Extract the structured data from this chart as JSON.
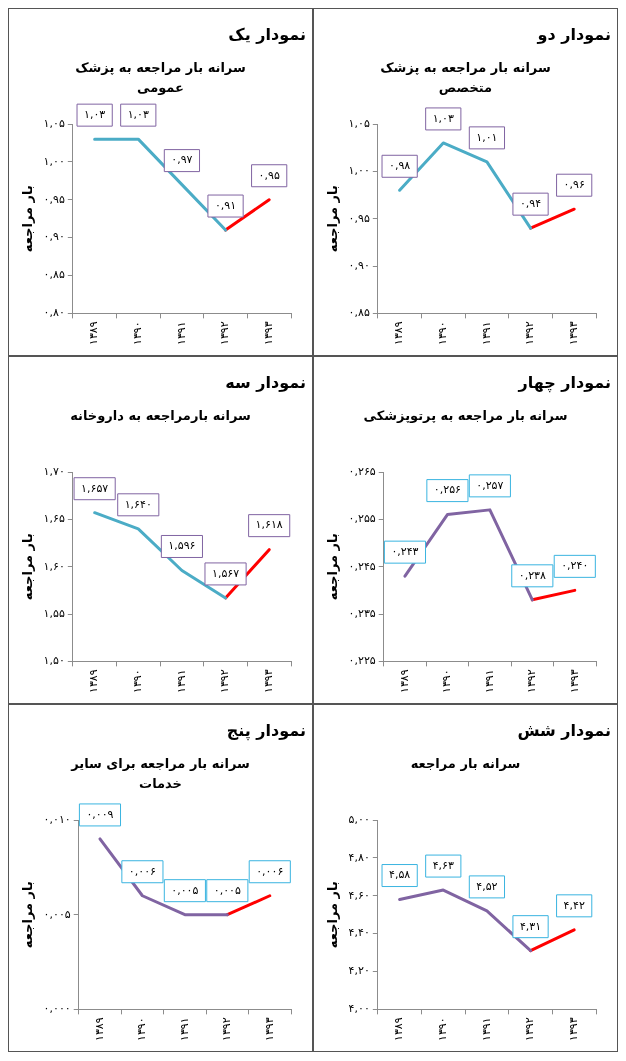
{
  "chart_data": [
    {
      "type": "line",
      "title": "نمودار یک",
      "subtitle": "سرانه بار مراجعه به پزشک عمومی",
      "ylabel": "بار مراجعه",
      "categories": [
        "۱۳۸۹",
        "۱۳۹۰",
        "۱۳۹۱",
        "۱۳۹۲",
        "۱۳۹۳"
      ],
      "ylim": [
        0.8,
        1.05
      ],
      "yticks": [
        {
          "value": 0.8,
          "label": "۰,۸۰"
        },
        {
          "value": 0.85,
          "label": "۰,۸۵"
        },
        {
          "value": 0.9,
          "label": "۰,۹۰"
        },
        {
          "value": 0.95,
          "label": "۰,۹۵"
        },
        {
          "value": 1.0,
          "label": "۱,۰۰"
        },
        {
          "value": 1.05,
          "label": "۱,۰۵"
        }
      ],
      "grid": false,
      "legend": false,
      "series": [
        {
          "color": "#4bacc6",
          "values": [
            1.03,
            1.03,
            0.97,
            0.91,
            null
          ],
          "value_labels": [
            "۱,۰۳",
            "۱,۰۳",
            "۰,۹۷",
            "۰,۹۱",
            null
          ]
        },
        {
          "color": "#ff0000",
          "values": [
            null,
            null,
            null,
            0.91,
            0.95
          ],
          "value_labels": [
            null,
            null,
            null,
            null,
            "۰,۹۵"
          ]
        }
      ]
    },
    {
      "type": "line",
      "title": "نمودار دو",
      "subtitle": "سرانه بار مراجعه به پزشک متخصص",
      "ylabel": "بار مراجعه",
      "categories": [
        "۱۳۸۹",
        "۱۳۹۰",
        "۱۳۹۱",
        "۱۳۹۲",
        "۱۳۹۳"
      ],
      "ylim": [
        0.85,
        1.05
      ],
      "yticks": [
        {
          "value": 0.85,
          "label": "۰,۸۵"
        },
        {
          "value": 0.9,
          "label": "۰,۹۰"
        },
        {
          "value": 0.95,
          "label": "۰,۹۵"
        },
        {
          "value": 1.0,
          "label": "۱,۰۰"
        },
        {
          "value": 1.05,
          "label": "۱,۰۵"
        }
      ],
      "grid": false,
      "legend": false,
      "series": [
        {
          "color": "#4bacc6",
          "values": [
            0.98,
            1.03,
            1.01,
            0.94,
            null
          ],
          "value_labels": [
            "۰,۹۸",
            "۱,۰۳",
            "۱,۰۱",
            "۰,۹۴",
            null
          ]
        },
        {
          "color": "#ff0000",
          "values": [
            null,
            null,
            null,
            0.94,
            0.96
          ],
          "value_labels": [
            null,
            null,
            null,
            null,
            "۰,۹۶"
          ]
        }
      ]
    },
    {
      "type": "line",
      "title": "نمودار سه",
      "subtitle": "سرانه بارمراجعه به داروخانه",
      "ylabel": "بار مراجعه",
      "categories": [
        "۱۳۸۹",
        "۱۳۹۰",
        "۱۳۹۱",
        "۱۳۹۲",
        "۱۳۹۳"
      ],
      "ylim": [
        1.5,
        1.7
      ],
      "yticks": [
        {
          "value": 1.5,
          "label": "۱,۵۰"
        },
        {
          "value": 1.55,
          "label": "۱,۵۵"
        },
        {
          "value": 1.6,
          "label": "۱,۶۰"
        },
        {
          "value": 1.65,
          "label": "۱,۶۵"
        },
        {
          "value": 1.7,
          "label": "۱,۷۰"
        }
      ],
      "grid": false,
      "legend": false,
      "series": [
        {
          "color": "#4bacc6",
          "values": [
            1.657,
            1.64,
            1.596,
            1.567,
            null
          ],
          "value_labels": [
            "۱,۶۵۷",
            "۱,۶۴۰",
            "۱,۵۹۶",
            "۱,۵۶۷",
            null
          ]
        },
        {
          "color": "#ff0000",
          "values": [
            null,
            null,
            null,
            1.567,
            1.618
          ],
          "value_labels": [
            null,
            null,
            null,
            null,
            "۱,۶۱۸"
          ]
        }
      ]
    },
    {
      "type": "line",
      "title": "نمودار چهار",
      "subtitle": "سرانه بار مراجعه به پرتوپزشکی",
      "ylabel": "بار مراجعه",
      "categories": [
        "۱۳۸۹",
        "۱۳۹۰",
        "۱۳۹۱",
        "۱۳۹۲",
        "۱۳۹۳"
      ],
      "ylim": [
        0.225,
        0.265
      ],
      "yticks": [
        {
          "value": 0.225,
          "label": "۰,۲۲۵"
        },
        {
          "value": 0.235,
          "label": "۰,۲۳۵"
        },
        {
          "value": 0.245,
          "label": "۰,۲۴۵"
        },
        {
          "value": 0.255,
          "label": "۰,۲۵۵"
        },
        {
          "value": 0.265,
          "label": "۰,۲۶۵"
        }
      ],
      "grid": false,
      "legend": false,
      "series": [
        {
          "color": "#8064a2",
          "values": [
            0.243,
            0.256,
            0.257,
            0.238,
            null
          ],
          "value_labels": [
            "۰,۲۴۳",
            "۰,۲۵۶",
            "۰,۲۵۷",
            "۰,۲۳۸",
            null
          ]
        },
        {
          "color": "#ff0000",
          "values": [
            null,
            null,
            null,
            0.238,
            0.24
          ],
          "value_labels": [
            null,
            null,
            null,
            null,
            "۰,۲۴۰"
          ]
        }
      ]
    },
    {
      "type": "line",
      "title": "نمودار پنج",
      "subtitle": "سرانه بار مراجعه برای سایر خدمات",
      "ylabel": "بار مراجعه",
      "categories": [
        "۱۳۸۹",
        "۱۳۹۰",
        "۱۳۹۱",
        "۱۳۹۲",
        "۱۳۹۳"
      ],
      "ylim": [
        0.0,
        0.01
      ],
      "yticks": [
        {
          "value": 0.0,
          "label": "۰,۰۰۰"
        },
        {
          "value": 0.005,
          "label": "۰,۰۰۵"
        },
        {
          "value": 0.01,
          "label": "۰,۰۱۰"
        }
      ],
      "grid": false,
      "legend": false,
      "series": [
        {
          "color": "#8064a2",
          "values": [
            0.009,
            0.006,
            0.005,
            0.005,
            null
          ],
          "value_labels": [
            "۰,۰۰۹",
            "۰,۰۰۶",
            "۰,۰۰۵",
            "۰,۰۰۵",
            null
          ]
        },
        {
          "color": "#ff0000",
          "values": [
            null,
            null,
            null,
            0.005,
            0.006
          ],
          "value_labels": [
            null,
            null,
            null,
            null,
            "۰,۰۰۶"
          ]
        }
      ]
    },
    {
      "type": "line",
      "title": "نمودار شش",
      "subtitle": "سرانه بار مراجعه",
      "ylabel": "بار مراجعه",
      "categories": [
        "۱۳۸۹",
        "۱۳۹۰",
        "۱۳۹۱",
        "۱۳۹۲",
        "۱۳۹۳"
      ],
      "ylim": [
        4.0,
        5.0
      ],
      "yticks": [
        {
          "value": 4.0,
          "label": "۴,۰۰"
        },
        {
          "value": 4.2,
          "label": "۴,۲۰"
        },
        {
          "value": 4.4,
          "label": "۴,۴۰"
        },
        {
          "value": 4.6,
          "label": "۴,۶۰"
        },
        {
          "value": 4.8,
          "label": "۴,۸۰"
        },
        {
          "value": 5.0,
          "label": "۵,۰۰"
        }
      ],
      "grid": false,
      "legend": false,
      "series": [
        {
          "color": "#8064a2",
          "values": [
            4.58,
            4.63,
            4.52,
            4.31,
            null
          ],
          "value_labels": [
            "۴,۵۸",
            "۴,۶۳",
            "۴,۵۲",
            "۴,۳۱",
            null
          ]
        },
        {
          "color": "#ff0000",
          "values": [
            null,
            null,
            null,
            4.31,
            4.42
          ],
          "value_labels": [
            null,
            null,
            null,
            null,
            "۴,۴۲"
          ]
        }
      ]
    }
  ]
}
